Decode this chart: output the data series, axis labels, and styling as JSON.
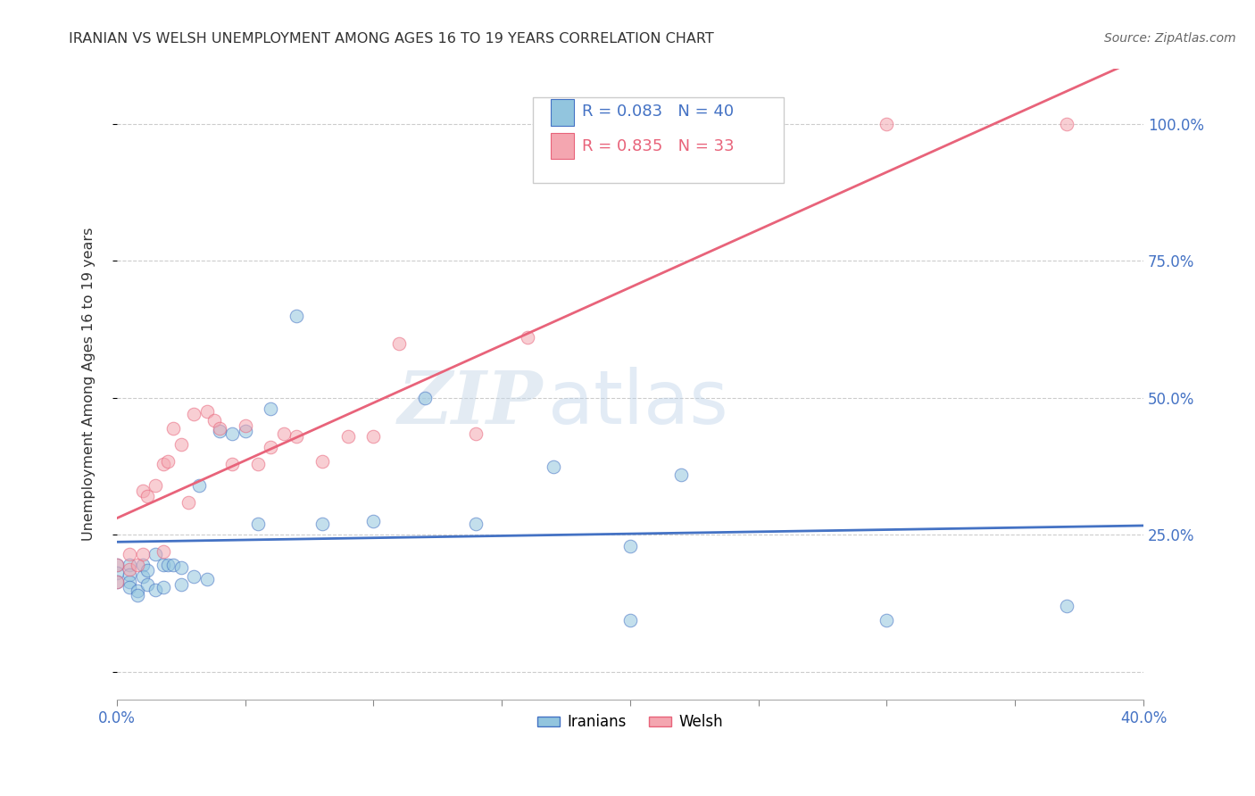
{
  "title": "IRANIAN VS WELSH UNEMPLOYMENT AMONG AGES 16 TO 19 YEARS CORRELATION CHART",
  "source": "Source: ZipAtlas.com",
  "ylabel": "Unemployment Among Ages 16 to 19 years",
  "xlim": [
    0.0,
    0.4
  ],
  "ylim": [
    -0.05,
    1.1
  ],
  "xticks": [
    0.0,
    0.05,
    0.1,
    0.15,
    0.2,
    0.25,
    0.3,
    0.35,
    0.4
  ],
  "yticks": [
    0.0,
    0.25,
    0.5,
    0.75,
    1.0
  ],
  "xticklabels_show": [
    "0.0%",
    "40.0%"
  ],
  "xticklabels_pos": [
    0.0,
    0.4
  ],
  "yticklabels": [
    "25.0%",
    "50.0%",
    "75.0%",
    "100.0%"
  ],
  "yticks_right": [
    0.25,
    0.5,
    0.75,
    1.0
  ],
  "iranian_color": "#92c5de",
  "welsh_color": "#f4a6b0",
  "trend_iranian_color": "#4472c4",
  "trend_welsh_color": "#e8637a",
  "watermark_zip": "ZIP",
  "watermark_atlas": "atlas",
  "background_color": "#ffffff",
  "title_color": "#333333",
  "grid_color": "#cccccc",
  "marker_size": 110,
  "marker_alpha": 0.55,
  "trend_linewidth": 2.0,
  "iranians_x": [
    0.0,
    0.0,
    0.0,
    0.005,
    0.005,
    0.005,
    0.005,
    0.008,
    0.008,
    0.01,
    0.01,
    0.012,
    0.012,
    0.015,
    0.015,
    0.018,
    0.018,
    0.02,
    0.022,
    0.025,
    0.025,
    0.03,
    0.032,
    0.035,
    0.04,
    0.045,
    0.05,
    0.055,
    0.06,
    0.07,
    0.08,
    0.1,
    0.12,
    0.14,
    0.17,
    0.2,
    0.22,
    0.2,
    0.3,
    0.37
  ],
  "iranians_y": [
    0.195,
    0.18,
    0.165,
    0.195,
    0.178,
    0.165,
    0.155,
    0.148,
    0.14,
    0.195,
    0.175,
    0.185,
    0.16,
    0.215,
    0.15,
    0.195,
    0.155,
    0.195,
    0.195,
    0.19,
    0.16,
    0.175,
    0.34,
    0.17,
    0.44,
    0.435,
    0.44,
    0.27,
    0.48,
    0.65,
    0.27,
    0.275,
    0.5,
    0.27,
    0.375,
    0.23,
    0.36,
    0.095,
    0.095,
    0.12
  ],
  "welsh_x": [
    0.0,
    0.0,
    0.005,
    0.005,
    0.008,
    0.01,
    0.01,
    0.012,
    0.015,
    0.018,
    0.018,
    0.02,
    0.022,
    0.025,
    0.028,
    0.03,
    0.035,
    0.038,
    0.04,
    0.045,
    0.05,
    0.055,
    0.06,
    0.065,
    0.07,
    0.08,
    0.09,
    0.1,
    0.11,
    0.14,
    0.16,
    0.3,
    0.37
  ],
  "welsh_y": [
    0.195,
    0.165,
    0.215,
    0.188,
    0.195,
    0.33,
    0.215,
    0.32,
    0.34,
    0.38,
    0.22,
    0.385,
    0.445,
    0.415,
    0.31,
    0.47,
    0.475,
    0.46,
    0.445,
    0.38,
    0.45,
    0.38,
    0.41,
    0.435,
    0.43,
    0.385,
    0.43,
    0.43,
    0.6,
    0.435,
    0.61,
    1.0,
    1.0
  ]
}
